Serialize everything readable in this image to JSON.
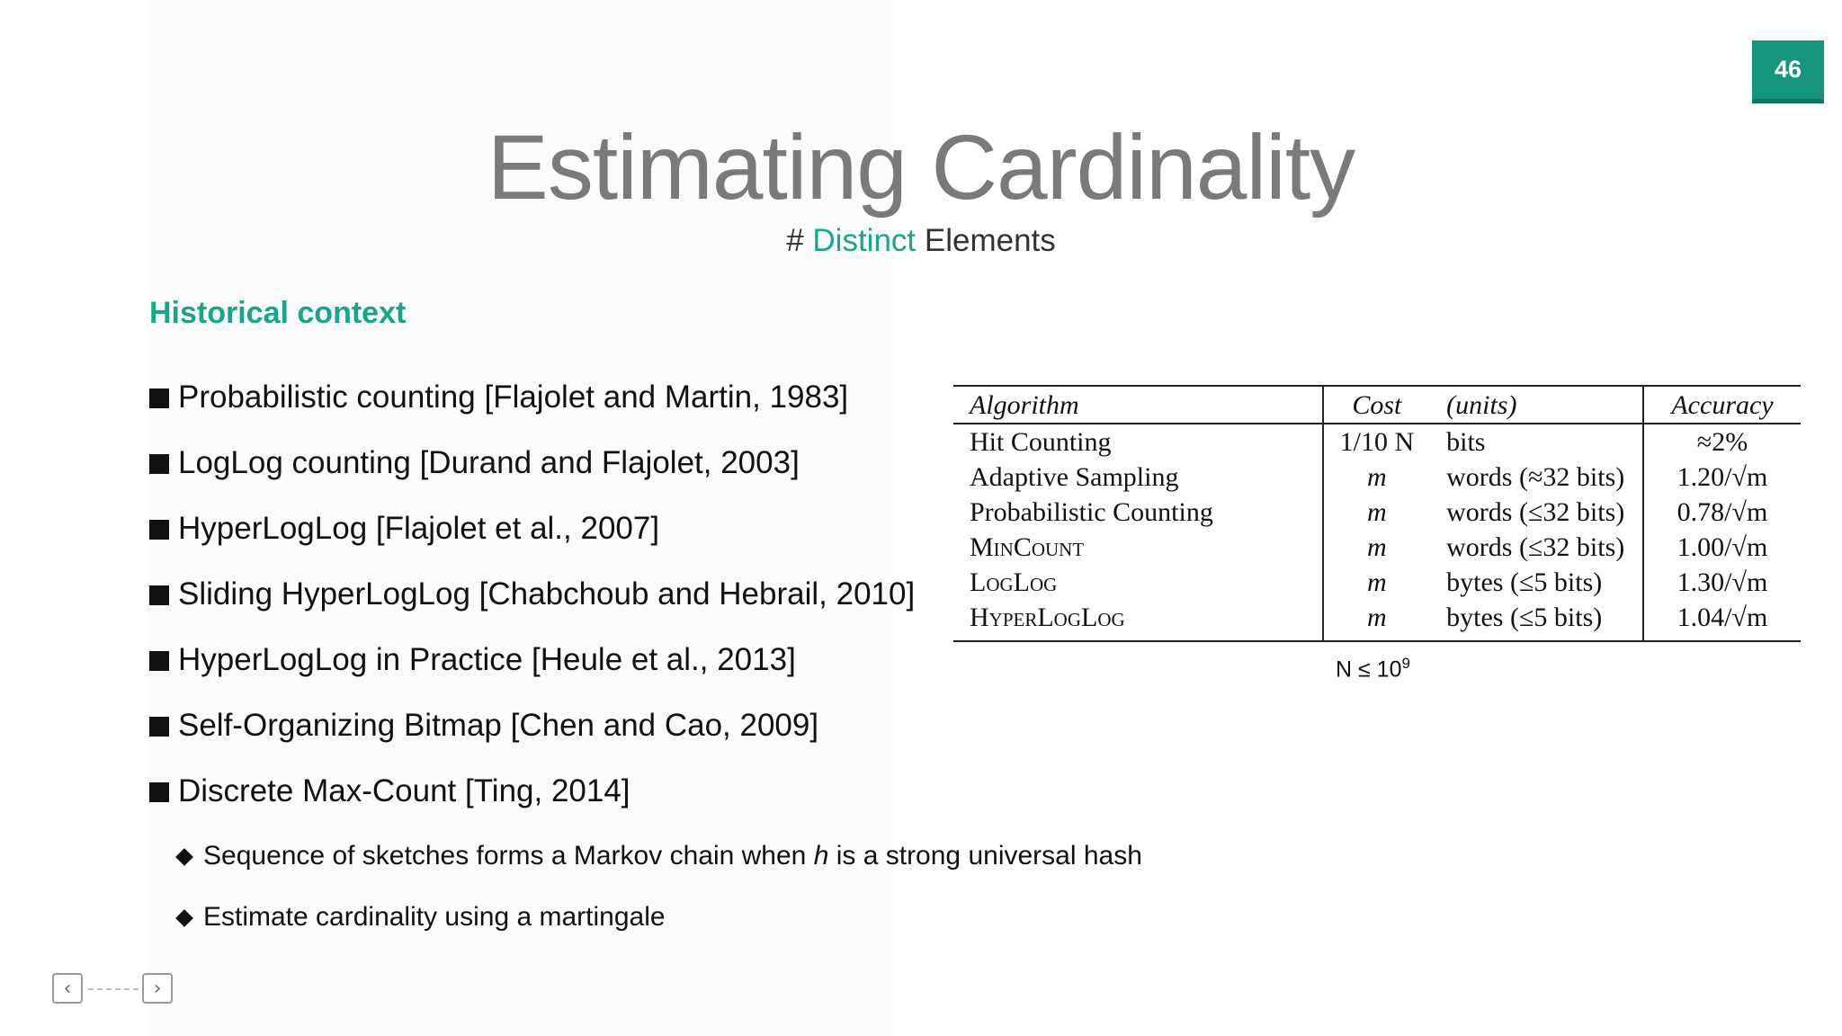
{
  "page_number": "46",
  "title": "Estimating Cardinality",
  "subtitle": {
    "prefix": "# ",
    "accent": "Distinct",
    "suffix": " Elements"
  },
  "section_heading": "Historical context",
  "bullets": [
    "Probabilistic counting [Flajolet and Martin, 1983]",
    "LogLog counting [Durand and Flajolet, 2003]",
    "HyperLogLog [Flajolet et al., 2007]",
    "Sliding HyperLogLog [Chabchoub and Hebrail, 2010]",
    "HyperLogLog in Practice [Heule et al., 2013]",
    "Self-Organizing Bitmap [Chen and Cao, 2009]",
    "Discrete Max-Count [Ting, 2014]"
  ],
  "sub_bullets": {
    "first_before": "Sequence of sketches forms a Markov chain when ",
    "first_italic": "h",
    "first_after": " is a strong universal hash",
    "second": "Estimate cardinality using a martingale"
  },
  "table": {
    "headers": {
      "algorithm": "Algorithm",
      "cost": "Cost",
      "units": "(units)",
      "accuracy": "Accuracy"
    },
    "rows": [
      {
        "algorithm": "Hit Counting",
        "cost": "1/10 N",
        "units": "bits",
        "accuracy": "≈2%"
      },
      {
        "algorithm": "Adaptive Sampling",
        "cost": "m",
        "units": "words (≈32 bits)",
        "accuracy": "1.20/√m"
      },
      {
        "algorithm": "Probabilistic Counting",
        "cost": "m",
        "units": "words (≤32 bits)",
        "accuracy": "0.78/√m"
      },
      {
        "algorithm": "MinCount",
        "cost": "m",
        "units": "words (≤32 bits)",
        "accuracy": "1.00/√m"
      },
      {
        "algorithm": "LogLog",
        "cost": "m",
        "units": "bytes (≤5 bits)",
        "accuracy": "1.30/√m"
      },
      {
        "algorithm": "HyperLogLog",
        "cost": "m",
        "units": "bytes (≤5 bits)",
        "accuracy": "1.04/√m"
      }
    ],
    "note_base": "N ≤ 10",
    "note_exp": "9"
  },
  "nav": {
    "prev": "‹",
    "next": "›"
  },
  "colors": {
    "accent": "#17a58b",
    "badge": "#17957f",
    "title": "#7a7a7a"
  }
}
